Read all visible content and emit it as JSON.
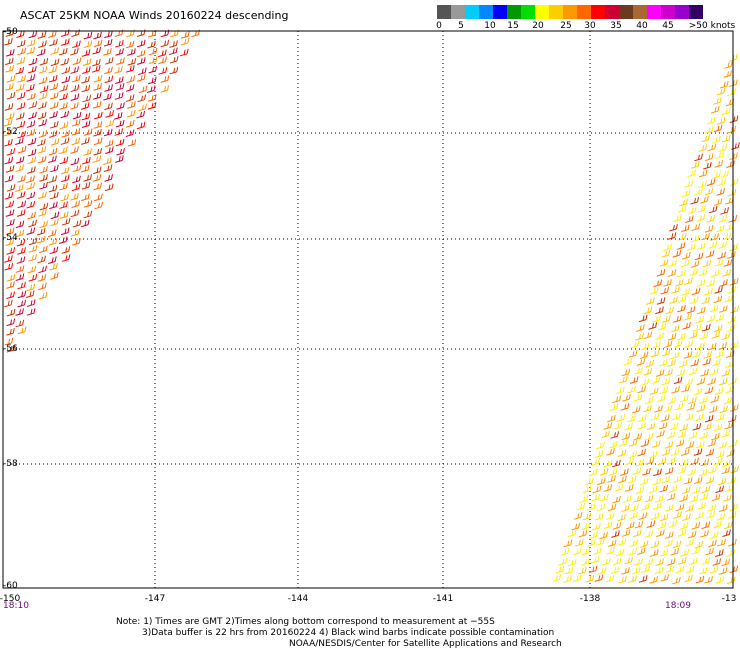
{
  "title": "ASCAT 25KM NOAA Winds 20160224 descending",
  "legend": {
    "colors": [
      "#555555",
      "#999999",
      "#00ccff",
      "#0088ff",
      "#0000ff",
      "#009900",
      "#00dd00",
      "#ffff00",
      "#ffcc00",
      "#ff9900",
      "#ff6600",
      "#ff0000",
      "#cc0033",
      "#6b3a1f",
      "#aa6633",
      "#ff00ff",
      "#cc00cc",
      "#9900cc",
      "#330066"
    ],
    "labels": [
      "0",
      "5",
      "10",
      "15",
      "20",
      "25",
      "30",
      "35",
      "40",
      "45",
      ">50 knots"
    ]
  },
  "axes": {
    "lat_labels": [
      "-50",
      "-52",
      "-54",
      "-56",
      "-58",
      "-60"
    ],
    "lon_labels": [
      "-150",
      "-147",
      "-144",
      "-141",
      "-138",
      "-13"
    ]
  },
  "times": {
    "left": "18:10",
    "right": "18:09"
  },
  "notes": [
    "Note: 1) Times are GMT 2)Times along bottom correspond to measurement at −55S",
    "3)Data buffer is 22 hrs from 20160224 4) Black wind barbs indicate possible contamination",
    "NOAA/NESDIS/Center for Satellite Applications and Research"
  ],
  "swaths": [
    {
      "name": "west-swath",
      "colors": [
        "#cc0033",
        "#ff0000",
        "#cc3300",
        "#ff6600",
        "#ff9900"
      ]
    },
    {
      "name": "east-swath",
      "colors": [
        "#ff6600",
        "#cc3300",
        "#ff9900",
        "#ffcc00",
        "#ffee00"
      ]
    }
  ]
}
